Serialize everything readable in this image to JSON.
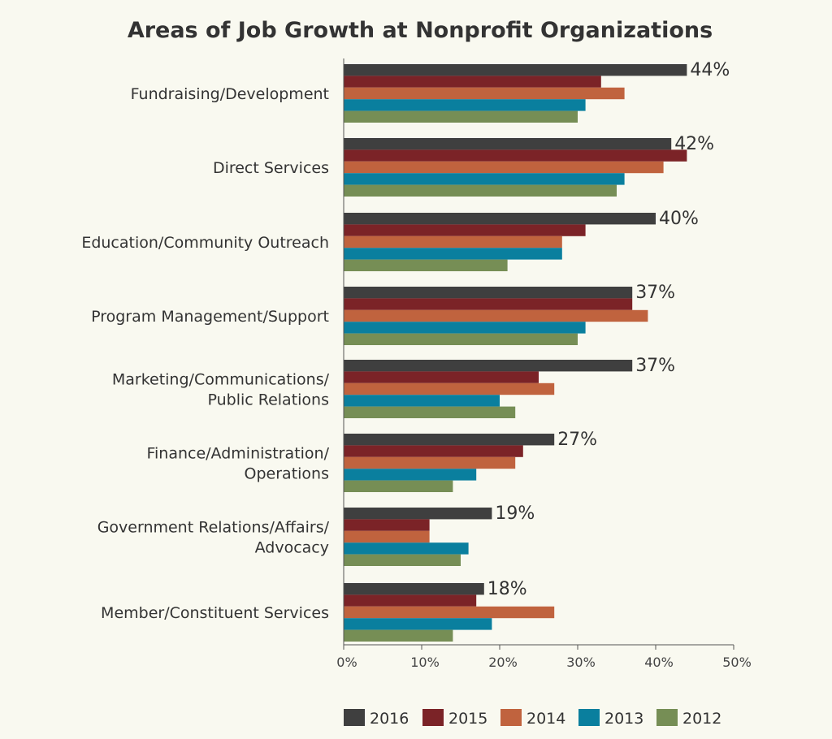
{
  "chart_data": {
    "type": "bar",
    "orientation": "horizontal",
    "title": "Areas of Job Growth at Nonprofit Organizations",
    "xlabel": "",
    "ylabel": "",
    "xlim": [
      0,
      50
    ],
    "x_ticks": [
      0,
      10,
      20,
      30,
      40,
      50
    ],
    "x_tick_labels": [
      "0%",
      "10%",
      "20%",
      "30%",
      "40%",
      "50%"
    ],
    "grid": false,
    "legend_position": "bottom",
    "categories": [
      [
        "Fundraising/Development"
      ],
      [
        "Direct Services"
      ],
      [
        "Education/Community Outreach"
      ],
      [
        "Program Management/Support"
      ],
      [
        "Marketing/Communications/",
        "Public Relations"
      ],
      [
        "Finance/Administration/",
        "Operations"
      ],
      [
        "Government Relations/Affairs/",
        "Advocacy"
      ],
      [
        "Member/Constituent Services"
      ]
    ],
    "series": [
      {
        "name": "2016",
        "color": "#3f3f3f",
        "values": [
          44,
          42,
          40,
          37,
          37,
          27,
          19,
          18
        ]
      },
      {
        "name": "2015",
        "color": "#7b2327",
        "values": [
          33,
          44,
          31,
          37,
          25,
          23,
          11,
          17
        ]
      },
      {
        "name": "2014",
        "color": "#c0633e",
        "values": [
          36,
          41,
          28,
          39,
          27,
          22,
          11,
          27
        ]
      },
      {
        "name": "2013",
        "color": "#0a7f9e",
        "values": [
          31,
          36,
          28,
          31,
          20,
          17,
          16,
          19
        ]
      },
      {
        "name": "2012",
        "color": "#768e55",
        "values": [
          30,
          35,
          21,
          30,
          22,
          14,
          15,
          14
        ]
      }
    ],
    "data_labels": [
      "44%",
      "42%",
      "40%",
      "37%",
      "37%",
      "27%",
      "19%",
      "18%"
    ]
  }
}
